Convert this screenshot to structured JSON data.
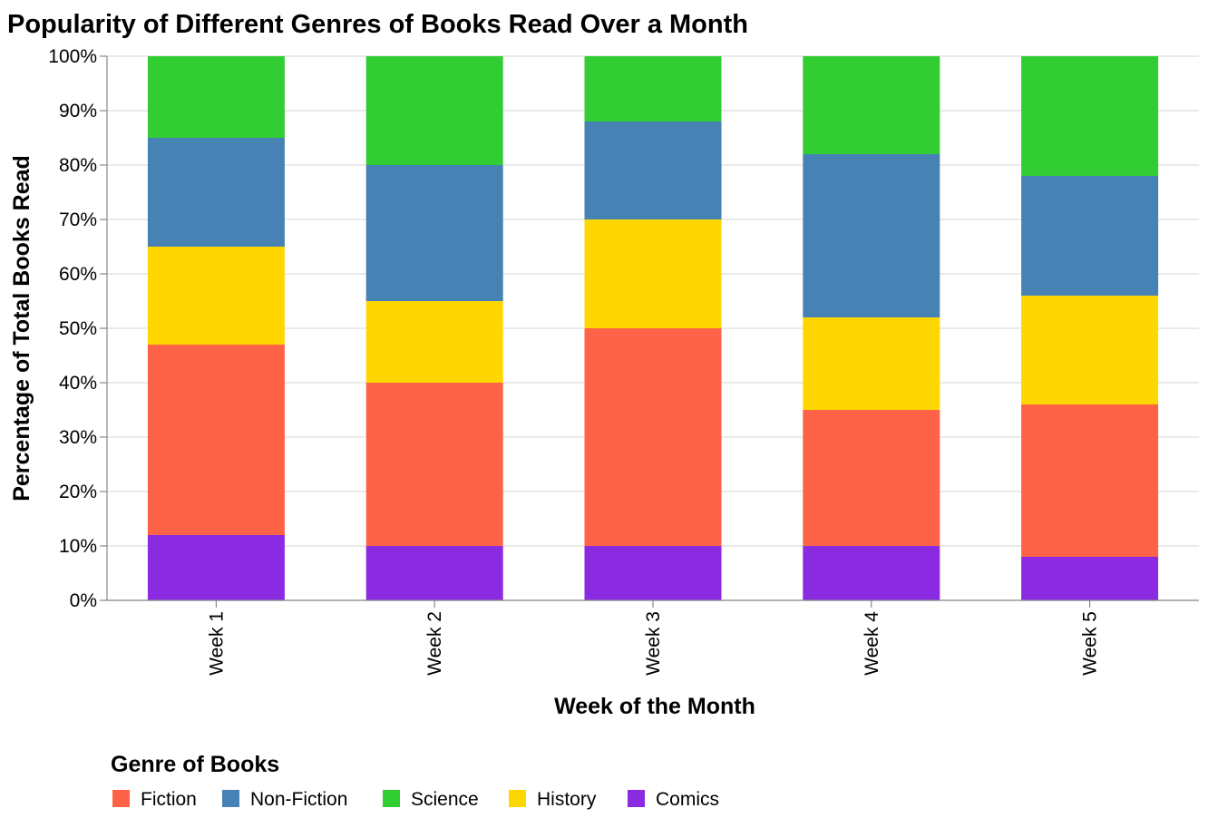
{
  "chart_data": {
    "type": "bar",
    "stacked": true,
    "normalized": true,
    "title": "Popularity of Different Genres of Books Read Over a Month",
    "xlabel": "Week of the Month",
    "ylabel": "Percentage of Total Books Read",
    "categories": [
      "Week 1",
      "Week 2",
      "Week 3",
      "Week 4",
      "Week 5"
    ],
    "ylim": [
      0,
      100
    ],
    "y_ticks": [
      "0%",
      "10%",
      "20%",
      "30%",
      "40%",
      "50%",
      "60%",
      "70%",
      "80%",
      "90%",
      "100%"
    ],
    "grid": true,
    "legend": {
      "title": "Genre of Books",
      "placement": "bottom",
      "items": [
        "Fiction",
        "Non-Fiction",
        "Science",
        "History",
        "Comics"
      ]
    },
    "stack_order_bottom_to_top": [
      "Comics",
      "Fiction",
      "History",
      "Non-Fiction",
      "Science"
    ],
    "series": [
      {
        "name": "Fiction",
        "color": "#ff6347",
        "values": [
          35,
          30,
          40,
          25,
          28
        ]
      },
      {
        "name": "Non-Fiction",
        "color": "#4682b4",
        "values": [
          20,
          25,
          18,
          30,
          22
        ]
      },
      {
        "name": "Science",
        "color": "#32cd32",
        "values": [
          15,
          20,
          12,
          18,
          22
        ]
      },
      {
        "name": "History",
        "color": "#ffd700",
        "values": [
          18,
          15,
          20,
          17,
          20
        ]
      },
      {
        "name": "Comics",
        "color": "#8a2be2",
        "values": [
          12,
          10,
          10,
          10,
          8
        ]
      }
    ]
  }
}
